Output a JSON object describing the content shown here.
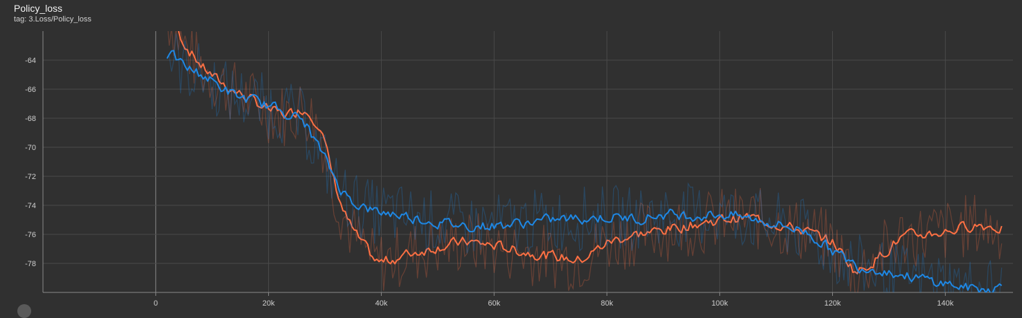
{
  "header": {
    "title": "Policy_loss",
    "subtitle": "tag: 3.Loss/Policy_loss"
  },
  "colors": {
    "background": "#303030",
    "grid": "#4a4a4a",
    "series_orange": "#ff7043",
    "series_blue": "#1e88e5"
  },
  "chart_data": {
    "type": "line",
    "title": "Policy_loss",
    "xlabel": "",
    "ylabel": "",
    "xlim": [
      -20000,
      152000
    ],
    "ylim": [
      -80,
      -62
    ],
    "x_ticks": [
      0,
      20000,
      40000,
      60000,
      80000,
      100000,
      120000,
      140000
    ],
    "x_tick_labels": [
      "0",
      "20k",
      "40k",
      "60k",
      "80k",
      "100k",
      "120k",
      "140k"
    ],
    "y_ticks": [
      -64,
      -66,
      -68,
      -70,
      -72,
      -74,
      -76,
      -78
    ],
    "y_tick_labels": [
      "-64",
      "-66",
      "-68",
      "-70",
      "-72",
      "-74",
      "-76",
      "-78"
    ],
    "grid": true,
    "legend": "none",
    "series": [
      {
        "color": "#ff7043",
        "x": [
          2000,
          5000,
          8000,
          11000,
          14000,
          17000,
          20000,
          23000,
          26000,
          29000,
          31000,
          33000,
          35000,
          37000,
          39000,
          41000,
          45000,
          50000,
          55000,
          60000,
          65000,
          70000,
          75000,
          80000,
          85000,
          90000,
          95000,
          100000,
          105000,
          110000,
          115000,
          120000,
          124000,
          128000,
          132000,
          136000,
          140000,
          145000,
          150000
        ],
        "y": [
          -61,
          -63,
          -64.5,
          -65.5,
          -66.2,
          -66.8,
          -67.5,
          -67.8,
          -67.3,
          -68.5,
          -72,
          -74.5,
          -76,
          -77,
          -78,
          -77.8,
          -77.3,
          -76.8,
          -76.5,
          -76.8,
          -77.2,
          -77.5,
          -77.8,
          -76.5,
          -76,
          -75.7,
          -75.3,
          -75,
          -74.8,
          -75.3,
          -75.8,
          -76.6,
          -78.7,
          -77.5,
          -76.2,
          -76,
          -75.8,
          -75.3,
          -75.6
        ]
      },
      {
        "color": "#1e88e5",
        "x": [
          2000,
          5000,
          8000,
          11000,
          14000,
          17000,
          20000,
          23000,
          26000,
          29000,
          31000,
          33000,
          35000,
          37000,
          39000,
          41000,
          45000,
          50000,
          55000,
          60000,
          65000,
          70000,
          75000,
          80000,
          85000,
          90000,
          95000,
          100000,
          105000,
          110000,
          115000,
          120000,
          124000,
          128000,
          132000,
          136000,
          140000,
          145000,
          150000
        ],
        "y": [
          -63.5,
          -64.5,
          -65,
          -65.8,
          -66.5,
          -66.8,
          -67.2,
          -67.6,
          -68.2,
          -70.3,
          -71.8,
          -73.2,
          -73.8,
          -74.2,
          -74.5,
          -74.5,
          -74.8,
          -75.2,
          -75.4,
          -75.4,
          -75.2,
          -75,
          -74.9,
          -74.8,
          -74.9,
          -74.6,
          -74.7,
          -74.6,
          -74.9,
          -75.3,
          -75.8,
          -77.2,
          -78.2,
          -78.4,
          -78.8,
          -79.1,
          -79.4,
          -79.8,
          -79.6
        ]
      }
    ]
  }
}
